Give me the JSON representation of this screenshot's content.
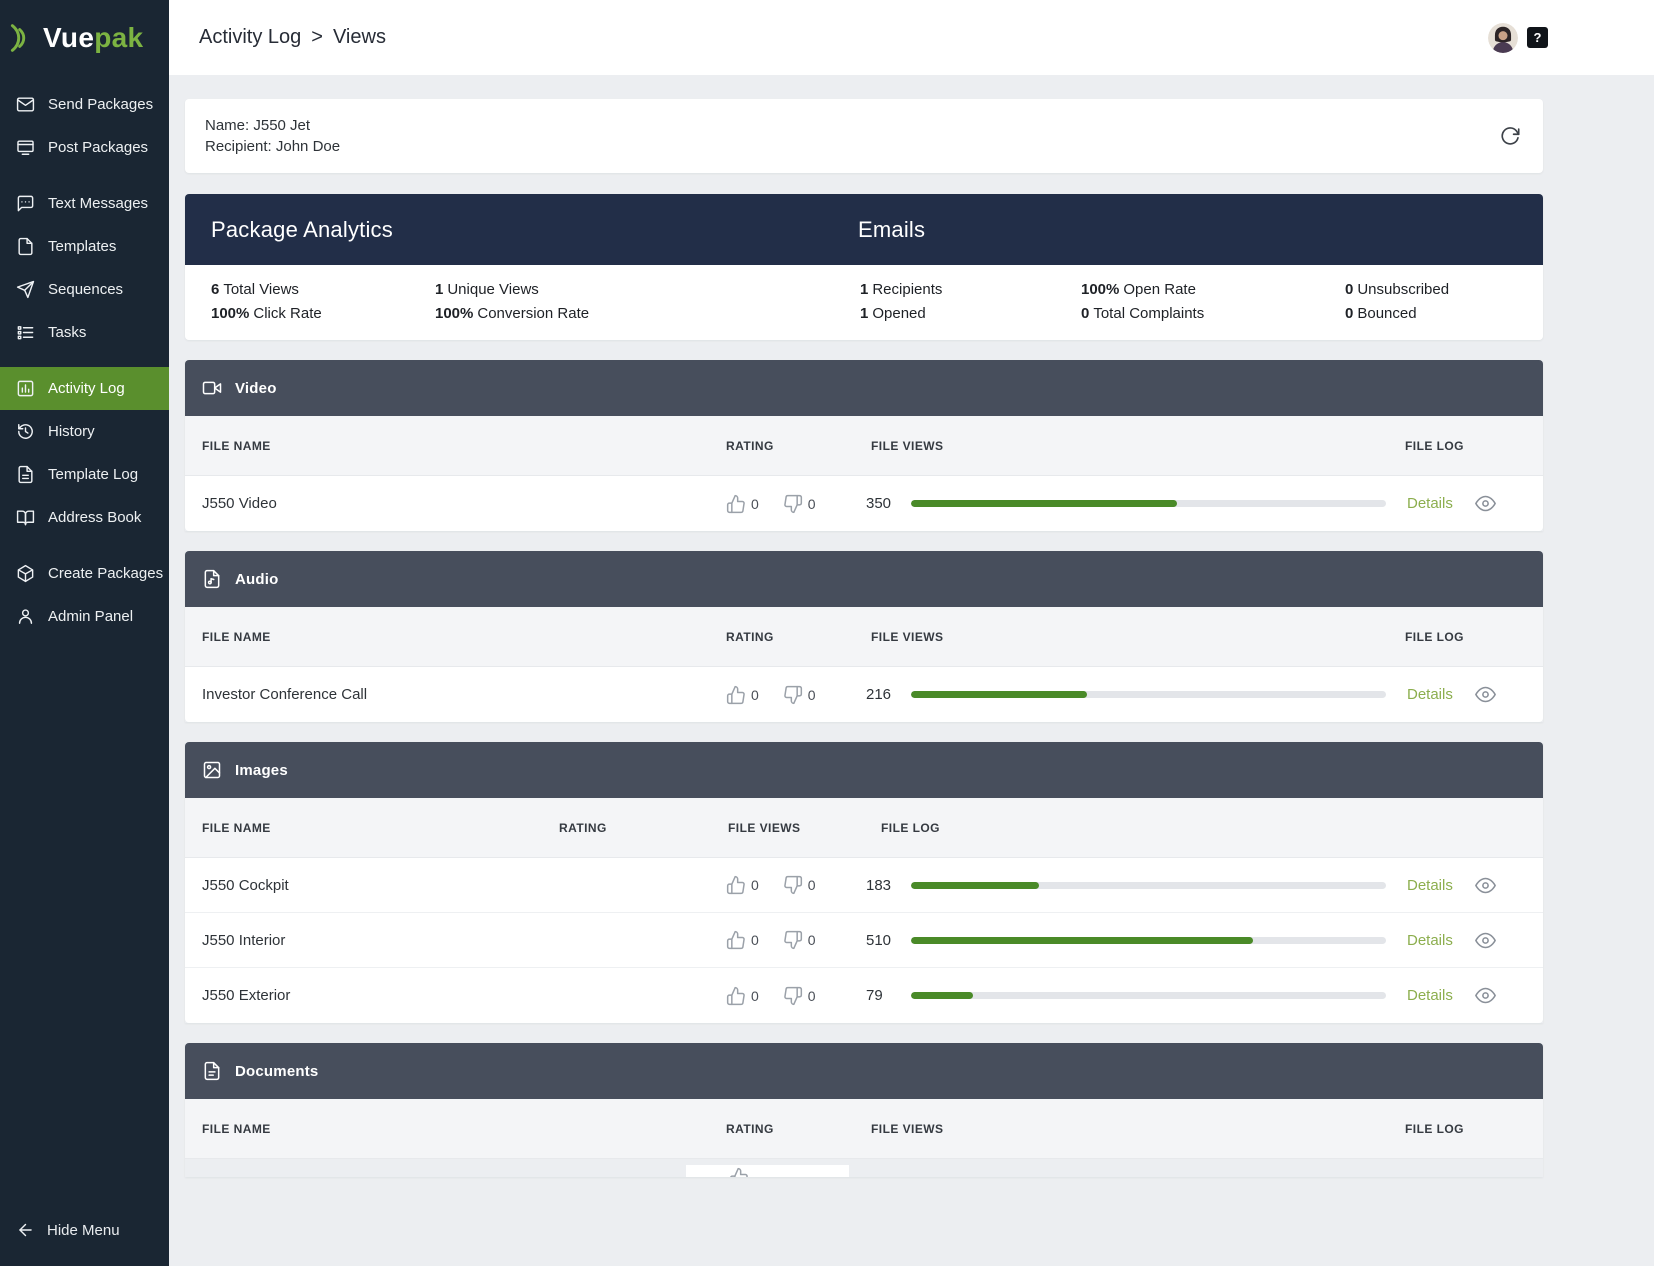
{
  "brand": {
    "name_part1": "Vue",
    "name_part2": "pak"
  },
  "sidebar": {
    "items": [
      {
        "id": "send-packages",
        "label": "Send Packages",
        "icon": "envelope-icon",
        "active": false,
        "gap_before": false
      },
      {
        "id": "post-packages",
        "label": "Post Packages",
        "icon": "post-packages-icon",
        "active": false,
        "gap_before": false
      },
      {
        "id": "text-messages",
        "label": "Text Messages",
        "icon": "chat-icon",
        "active": false,
        "gap_before": true
      },
      {
        "id": "templates",
        "label": "Templates",
        "icon": "file-icon",
        "active": false,
        "gap_before": false
      },
      {
        "id": "sequences",
        "label": "Sequences",
        "icon": "send-icon",
        "active": false,
        "gap_before": false
      },
      {
        "id": "tasks",
        "label": "Tasks",
        "icon": "tasks-icon",
        "active": false,
        "gap_before": false
      },
      {
        "id": "activity-log",
        "label": "Activity Log",
        "icon": "activity-log-icon",
        "active": true,
        "gap_before": true
      },
      {
        "id": "history",
        "label": "History",
        "icon": "history-icon",
        "active": false,
        "gap_before": false
      },
      {
        "id": "template-log",
        "label": "Template Log",
        "icon": "template-log-icon",
        "active": false,
        "gap_before": false
      },
      {
        "id": "address-book",
        "label": "Address Book",
        "icon": "address-book-icon",
        "active": false,
        "gap_before": false
      },
      {
        "id": "create-packages",
        "label": "Create Packages",
        "icon": "create-packages-icon",
        "active": false,
        "gap_before": true
      },
      {
        "id": "admin-panel",
        "label": "Admin Panel",
        "icon": "admin-panel-icon",
        "active": false,
        "gap_before": false
      }
    ],
    "hide_menu_label": "Hide Menu"
  },
  "header": {
    "breadcrumb_section": "Activity Log",
    "breadcrumb_separator": ">",
    "breadcrumb_page": "Views",
    "help_label": "?"
  },
  "package_info": {
    "name": "Name: J550 Jet",
    "recipient": "Recipient: John Doe"
  },
  "analytics": {
    "package_title": "Package Analytics",
    "emails_title": "Emails",
    "stats_rows": [
      [
        {
          "value": "6",
          "label": "Total Views"
        },
        {
          "value": "1",
          "label": "Unique Views"
        },
        {
          "value": "1",
          "label": "Recipients"
        },
        {
          "value": "100%",
          "label": "Open Rate"
        },
        {
          "value": "0",
          "label": "Unsubscribed"
        }
      ],
      [
        {
          "value": "100%",
          "label": "Click Rate"
        },
        {
          "value": "100%",
          "label": "Conversion Rate"
        },
        {
          "value": "1",
          "label": "Opened"
        },
        {
          "value": "0",
          "label": "Total Complaints"
        },
        {
          "value": "0",
          "label": "Bounced"
        }
      ]
    ]
  },
  "sections": [
    {
      "id": "video",
      "title": "Video",
      "icon": "video-icon",
      "header_variant": "normal",
      "columns": [
        "FILE NAME",
        "RATING",
        "FILE VIEWS",
        "FILE LOG"
      ],
      "rows": [
        {
          "file_name": "J550 Video",
          "thumbs_up": "0",
          "thumbs_down": "0",
          "views": "350",
          "progress_percent": 56,
          "details_label": "Details"
        }
      ]
    },
    {
      "id": "audio",
      "title": "Audio",
      "icon": "audio-file-icon",
      "header_variant": "normal",
      "columns": [
        "FILE NAME",
        "RATING",
        "FILE VIEWS",
        "FILE LOG"
      ],
      "rows": [
        {
          "file_name": "Investor Conference Call",
          "thumbs_up": "0",
          "thumbs_down": "0",
          "views": "216",
          "progress_percent": 37,
          "details_label": "Details"
        }
      ]
    },
    {
      "id": "images",
      "title": "Images",
      "icon": "images-icon",
      "header_variant": "shifted",
      "columns": [
        "FILE NAME",
        "RATING",
        "FILE VIEWS",
        "FILE LOG"
      ],
      "rows": [
        {
          "file_name": "J550 Cockpit",
          "thumbs_up": "0",
          "thumbs_down": "0",
          "views": "183",
          "progress_percent": 27,
          "details_label": "Details"
        },
        {
          "file_name": "J550 Interior",
          "thumbs_up": "0",
          "thumbs_down": "0",
          "views": "510",
          "progress_percent": 72,
          "details_label": "Details"
        },
        {
          "file_name": "J550 Exterior",
          "thumbs_up": "0",
          "thumbs_down": "0",
          "views": "79",
          "progress_percent": 13,
          "details_label": "Details"
        }
      ]
    },
    {
      "id": "documents",
      "title": "Documents",
      "icon": "documents-icon",
      "header_variant": "normal",
      "columns": [
        "FILE NAME",
        "RATING",
        "FILE VIEWS",
        "FILE LOG"
      ],
      "rows": [],
      "partial_rating_widget": true
    }
  ],
  "colors": {
    "sidebar_bg": "#1a2633",
    "active_green": "#5a8f2d",
    "brand_green": "#7cb342",
    "progress_green": "#4a8a28",
    "navy_header": "#222e48",
    "slate_header": "#474e5c"
  }
}
